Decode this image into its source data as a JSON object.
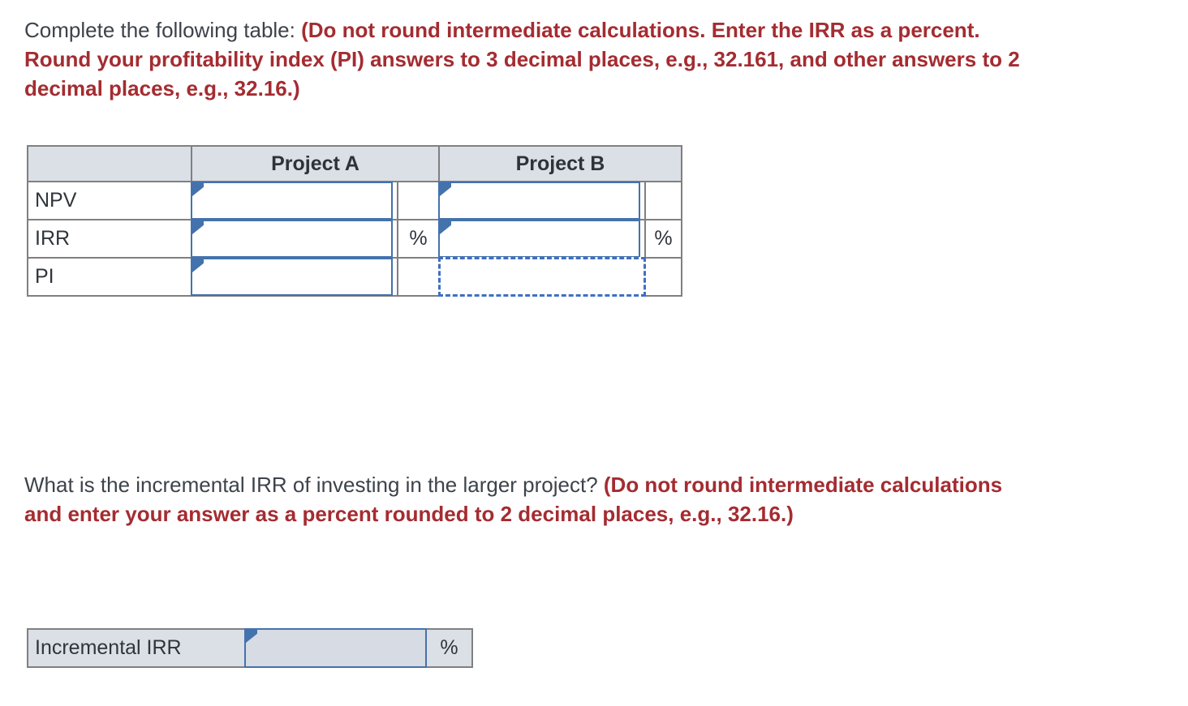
{
  "questions": [
    {
      "plain": "Complete the following table: ",
      "instruction": "(Do not round intermediate calculations. Enter the IRR as a percent. Round your profitability index (PI) answers to 3 decimal places, e.g., 32.161, and other answers to 2 decimal places, e.g., 32.16.)"
    },
    {
      "plain": "What is the incremental IRR of investing in the larger project? ",
      "instruction": "(Do not round intermediate calculations and enter your answer as a percent rounded to 2 decimal places, e.g., 32.16.)"
    }
  ],
  "projects_table": {
    "column_headers": [
      "Project A",
      "Project B"
    ],
    "rows": [
      {
        "label": "NPV",
        "suffix_a": "",
        "suffix_b": ""
      },
      {
        "label": "IRR",
        "suffix_a": "%",
        "suffix_b": "%"
      },
      {
        "label": "PI",
        "suffix_a": "",
        "suffix_b": ""
      }
    ],
    "inputs": {
      "npv_a": "",
      "npv_b": "",
      "irr_a": "",
      "irr_b": "",
      "pi_a": ""
    }
  },
  "incremental_table": {
    "label": "Incremental IRR",
    "suffix": "%",
    "input_value": ""
  },
  "colors": {
    "accent_blue": "#4472ad",
    "dashed_blue": "#3f70c1",
    "grid_gray": "#808080",
    "header_bg": "#dbdfe6",
    "red_text": "#a42c31",
    "dark_text": "#3d434b"
  }
}
